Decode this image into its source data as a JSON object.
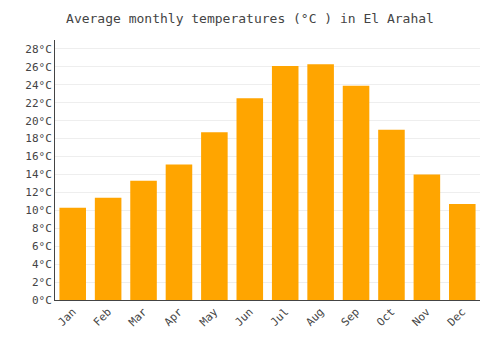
{
  "chart_data": {
    "type": "bar",
    "title": "Average monthly temperatures (°C ) in El Arahal",
    "categories": [
      "Jan",
      "Feb",
      "Mar",
      "Apr",
      "May",
      "Jun",
      "Jul",
      "Aug",
      "Sep",
      "Oct",
      "Nov",
      "Dec"
    ],
    "values": [
      10.3,
      11.4,
      13.3,
      15.1,
      18.7,
      22.5,
      26.1,
      26.3,
      23.9,
      19.0,
      14.0,
      10.7
    ],
    "color": "#FFA500",
    "ylim": [
      0,
      29
    ],
    "yticks": [
      {
        "value": 0,
        "label": "0°C"
      },
      {
        "value": 2,
        "label": "2°C"
      },
      {
        "value": 4,
        "label": "4°C"
      },
      {
        "value": 6,
        "label": "6°C"
      },
      {
        "value": 8,
        "label": "8°C"
      },
      {
        "value": 10,
        "label": "10°C"
      },
      {
        "value": 12,
        "label": "12°C"
      },
      {
        "value": 14,
        "label": "14°C"
      },
      {
        "value": 16,
        "label": "16°C"
      },
      {
        "value": 18,
        "label": "18°C"
      },
      {
        "value": 20,
        "label": "20°C"
      },
      {
        "value": 22,
        "label": "22°C"
      },
      {
        "value": 24,
        "label": "24°C"
      },
      {
        "value": 26,
        "label": "26°C"
      },
      {
        "value": 28,
        "label": "28°C"
      }
    ],
    "grid": true
  }
}
